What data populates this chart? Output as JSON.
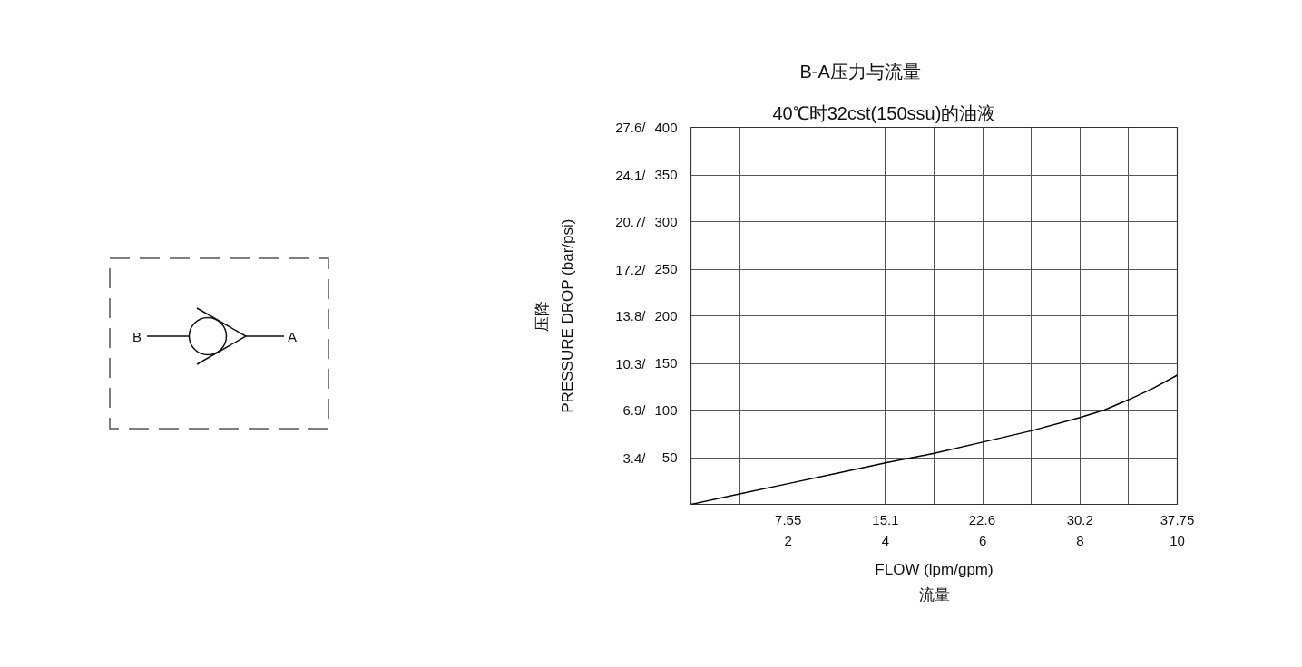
{
  "chart_data": {
    "type": "line",
    "title": "B-A压力与流量",
    "subtitle": "40℃时32cst(150ssu)的油液",
    "xlabel": "FLOW (lpm/gpm)\n流量",
    "ylabel": "压降\nPRESSURE DROP (bar/psi)",
    "x": [
      0,
      1,
      2,
      3,
      4,
      5,
      6,
      7,
      8,
      8.5,
      9,
      9.5,
      10
    ],
    "series": [
      {
        "color": "#000000",
        "axis": "y2",
        "values": [
          0,
          11,
          22,
          33,
          44,
          54,
          66,
          78,
          92,
          100,
          111,
          123,
          137
        ]
      }
    ],
    "xlim": [
      0,
      10
    ],
    "ylim": [
      0,
      27.6
    ],
    "xticks": [
      {
        "value": 1,
        "label": null
      },
      2,
      {
        "value": 3,
        "label": null
      },
      4,
      {
        "value": 5,
        "label": null
      },
      6,
      {
        "value": 7,
        "label": null
      },
      8,
      {
        "value": 9,
        "label": null
      },
      10
    ],
    "x2lim": [
      0,
      37.75
    ],
    "x2ticks": [
      7.55,
      15.1,
      22.6,
      30.2,
      37.75
    ],
    "yticks": [
      {
        "value": 3.4,
        "label": "3.4/"
      },
      {
        "value": 6.9,
        "label": "6.9/"
      },
      {
        "value": 10.3,
        "label": "10.3/"
      },
      {
        "value": 13.8,
        "label": "13.8/"
      },
      {
        "value": 17.2,
        "label": "17.2/"
      },
      {
        "value": 20.7,
        "label": "20.7/"
      },
      {
        "value": 24.1,
        "label": "24.1/"
      },
      {
        "value": 27.6,
        "label": "27.6/"
      }
    ],
    "y2lim": [
      0,
      400
    ],
    "y2ticks": [
      50,
      100,
      150,
      200,
      250,
      300,
      350,
      400
    ],
    "grid": true,
    "annotations": [
      "B",
      "A"
    ]
  }
}
